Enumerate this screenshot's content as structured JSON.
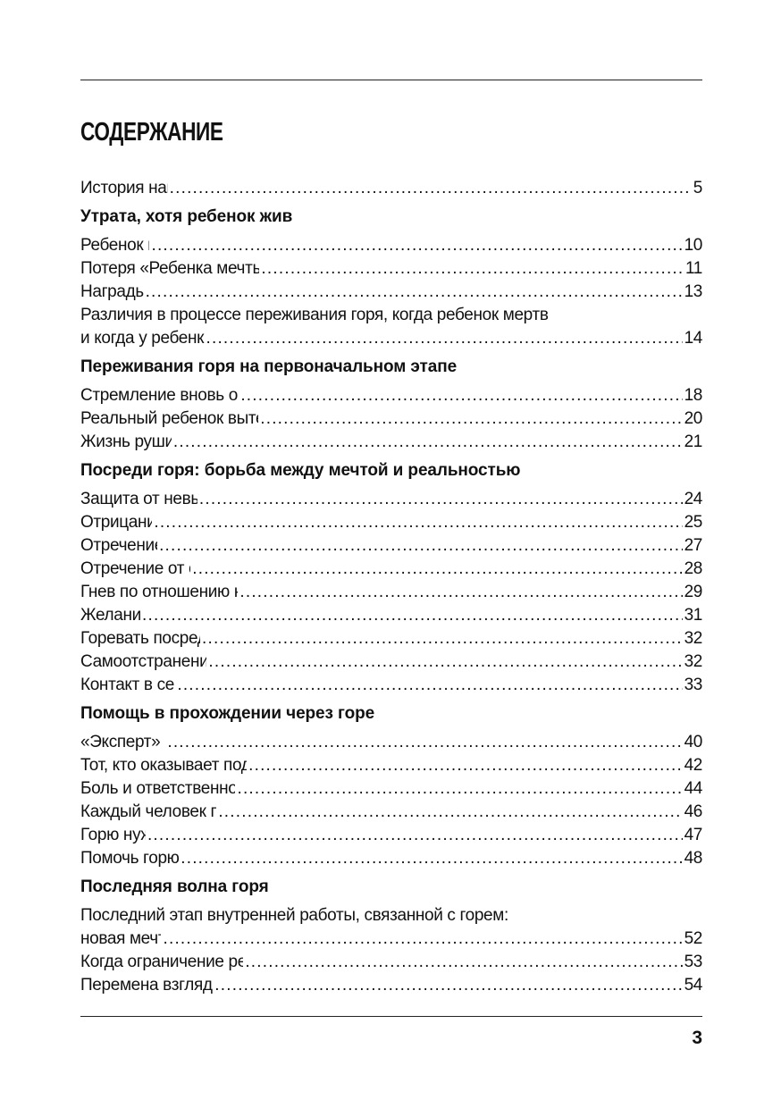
{
  "title": "СОДЕРЖАНИЕ",
  "page_number": "3",
  "toc": [
    {
      "type": "entry",
      "lines": [
        "История написания книги"
      ],
      "page": "5"
    },
    {
      "type": "section",
      "title": "Утрата, хотя ребенок жив"
    },
    {
      "type": "entry",
      "lines": [
        "Ребенок как символ"
      ],
      "page": "10"
    },
    {
      "type": "entry",
      "lines": [
        "Потеря «Ребенка мечты» – и рождение ребенка с ограничением"
      ],
      "page": "11"
    },
    {
      "type": "entry",
      "lines": [
        "Награды не будет"
      ],
      "page": "13"
    },
    {
      "type": "entry",
      "lines": [
        "Различия в процессе переживания горя, когда ребенок мертв",
        "и когда у ребенка имеется ограничение"
      ],
      "page": "14"
    },
    {
      "type": "section",
      "title": "Переживания горя на первоначальном этапе"
    },
    {
      "type": "entry",
      "lines": [
        "Стремление вновь обрести «Ребенка мечты»: протест"
      ],
      "page": "18"
    },
    {
      "type": "entry",
      "lines": [
        "Реальный ребенок вытесняет «Ребенка мечты»: разочарование"
      ],
      "page": "20"
    },
    {
      "type": "entry",
      "lines": [
        "Жизнь рушится: депрессия"
      ],
      "page": "21"
    },
    {
      "type": "section",
      "title": "Посреди горя: борьба между мечтой и реальностью"
    },
    {
      "type": "entry",
      "lines": [
        "Защита от невыносимой реальности"
      ],
      "page": "24"
    },
    {
      "type": "entry",
      "lines": [
        "Отрицание диагноза"
      ],
      "page": "25"
    },
    {
      "type": "entry",
      "lines": [
        "Отречение от ребенка"
      ],
      "page": "27"
    },
    {
      "type": "entry",
      "lines": [
        "Отречение от собственных чувств"
      ],
      "page": "28"
    },
    {
      "type": "entry",
      "lines": [
        "Гнев по отношению к ребенку направляется на других"
      ],
      "page": "29"
    },
    {
      "type": "entry",
      "lines": [
        "Желание смерти"
      ],
      "page": "31"
    },
    {
      "type": "entry",
      "lines": [
        "Горевать посредством кого-то другого"
      ],
      "page": "32"
    },
    {
      "type": "entry",
      "lines": [
        "Самоотстранение от окружающего мира"
      ],
      "page": "32"
    },
    {
      "type": "entry",
      "lines": [
        "Контакт в семье нарушается"
      ],
      "page": "33"
    },
    {
      "type": "section",
      "title": "Помощь в прохождении через горе"
    },
    {
      "type": "entry",
      "lines": [
        "«Эксперт» или ближний?"
      ],
      "page": "40"
    },
    {
      "type": "entry",
      "lines": [
        "Тот, кто оказывает поддержку, имеет собственные чувства"
      ],
      "page": "42"
    },
    {
      "type": "entry",
      "lines": [
        "Боль и ответственность остаются у самих родителей"
      ],
      "page": "44"
    },
    {
      "type": "entry",
      "lines": [
        "Каждый человек переживает горе по-своему"
      ],
      "page": "46"
    },
    {
      "type": "entry",
      "lines": [
        "Горю нужно время"
      ],
      "page": "47"
    },
    {
      "type": "entry",
      "lines": [
        "Помочь горю «выйти наружу»"
      ],
      "page": "48"
    },
    {
      "type": "section",
      "title": "Последняя волна горя"
    },
    {
      "type": "entry",
      "lines": [
        "Последний этап внутренней работы, связанной с горем:",
        "новая мечта о будущем"
      ],
      "page": "52"
    },
    {
      "type": "entry",
      "lines": [
        "Когда ограничение ребенка обнаруживается постепенно"
      ],
      "page": "53"
    },
    {
      "type": "entry",
      "lines": [
        "Перемена взгляда на ребенка – принятие?"
      ],
      "page": "54"
    }
  ]
}
